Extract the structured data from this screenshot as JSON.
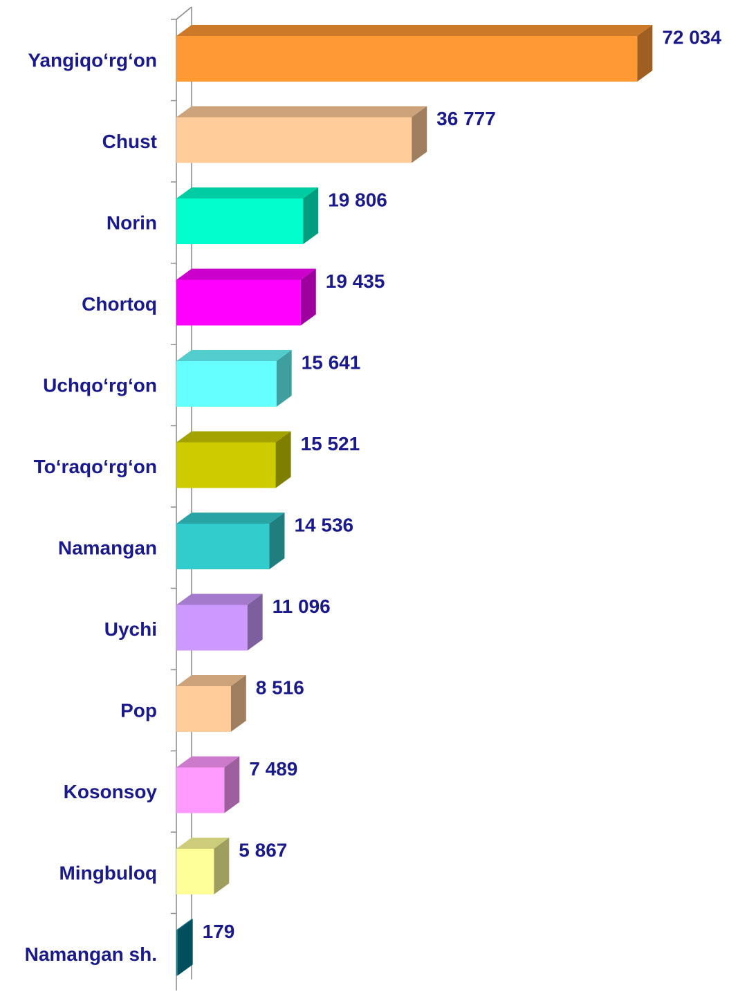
{
  "chart_data": {
    "type": "bar",
    "orientation": "horizontal",
    "three_d": true,
    "categories": [
      "Yangiqo‘rg‘on",
      "Chust",
      "Norin",
      "Chortoq",
      "Uchqo‘rg‘on",
      "To‘raqo‘rg‘on",
      "Namangan",
      "Uychi",
      "Pop",
      "Kosonsoy",
      "Mingbuloq",
      "Namangan sh."
    ],
    "values": [
      72034,
      36777,
      19806,
      19435,
      15641,
      15521,
      14536,
      11096,
      8516,
      7489,
      5867,
      179
    ],
    "value_labels": [
      "72 034",
      "36 777",
      "19 806",
      "19 435",
      "15 641",
      "15 521",
      "14 536",
      "11 096",
      "8 516",
      "7 489",
      "5 867",
      "179"
    ],
    "colors": [
      "#ff9933",
      "#ffcc99",
      "#00ffcc",
      "#ff00ff",
      "#66ffff",
      "#cccc00",
      "#33cccc",
      "#cc99ff",
      "#ffcc99",
      "#ff99ff",
      "#ffff99",
      "#008099"
    ],
    "xlim": [
      0,
      80000
    ]
  }
}
